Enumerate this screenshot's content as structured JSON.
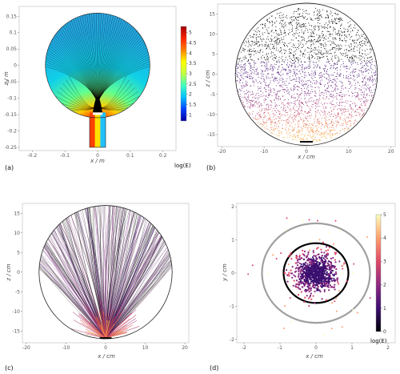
{
  "chart_data": [
    {
      "panel": "(a)",
      "type": "heatmap",
      "description_visible": "filled circle with electrode stem, colored field with field lines",
      "xlabel": "x / m",
      "ylabel": "z / m",
      "xlim": [
        -0.24,
        0.24
      ],
      "ylim": [
        -0.26,
        0.18
      ],
      "xticks": [
        "-0.2",
        "-0.1",
        "0",
        "0.1",
        "0.2"
      ],
      "yticks": [
        "-0.25",
        "-0.2",
        "-0.15",
        "-0.1",
        "-0.05",
        "0",
        "0.05",
        "0.1",
        "0.15"
      ],
      "colorbar": {
        "label": "log(E)",
        "ticks": [
          "1",
          "1.5",
          "2",
          "2.5",
          "3",
          "3.5",
          "4",
          "4.5",
          "5"
        ],
        "range": [
          0.7,
          5.3
        ],
        "colors": [
          "#0000a0",
          "#0040ff",
          "#00c0ff",
          "#40ffc0",
          "#c0ff40",
          "#ffff00",
          "#ff8000",
          "#ff2000",
          "#a00000"
        ]
      },
      "circle": {
        "cx": 0,
        "cz": 0,
        "r": 0.16
      }
    },
    {
      "panel": "(b)",
      "type": "scatter",
      "xlabel": "x / cm",
      "ylabel": "z / cm",
      "xlim": [
        -21,
        21
      ],
      "ylim": [
        -18,
        17.5
      ],
      "xticks": [
        -20,
        -10,
        0,
        10,
        20
      ],
      "yticks": [
        -15,
        -10,
        -5,
        0,
        5,
        10,
        15
      ],
      "circle_radius": 16.8
    },
    {
      "panel": "(c)",
      "type": "line",
      "xlabel": "x / cm",
      "ylabel": "z / cm",
      "xlim": [
        -21,
        21
      ],
      "ylim": [
        -18,
        17.5
      ],
      "xticks": [
        -20,
        -10,
        0,
        10,
        20
      ],
      "yticks": [
        -15,
        -10,
        -5,
        0,
        5,
        10,
        15
      ],
      "circle_radius": 16.8
    },
    {
      "panel": "(d)",
      "type": "scatter",
      "xlabel": "x / cm",
      "ylabel": "y / cm",
      "xlim": [
        -2.2,
        2.2
      ],
      "ylim": [
        -2.1,
        2.1
      ],
      "xticks": [
        -2,
        -1,
        0,
        1,
        2
      ],
      "yticks": [
        -2,
        -1,
        0,
        1,
        2
      ],
      "rings": [
        {
          "r": 0.9,
          "color": "#000000"
        },
        {
          "r": 1.5,
          "color": "#a0a0a0"
        }
      ],
      "colorbar": {
        "label": "log(E)",
        "ticks": [
          "0",
          "1",
          "2",
          "3",
          "4",
          "5"
        ],
        "range": [
          0,
          5
        ],
        "colors": [
          "#000004",
          "#3b0f70",
          "#8c2981",
          "#de4968",
          "#fe9f6d",
          "#fcfdbf"
        ]
      }
    }
  ]
}
